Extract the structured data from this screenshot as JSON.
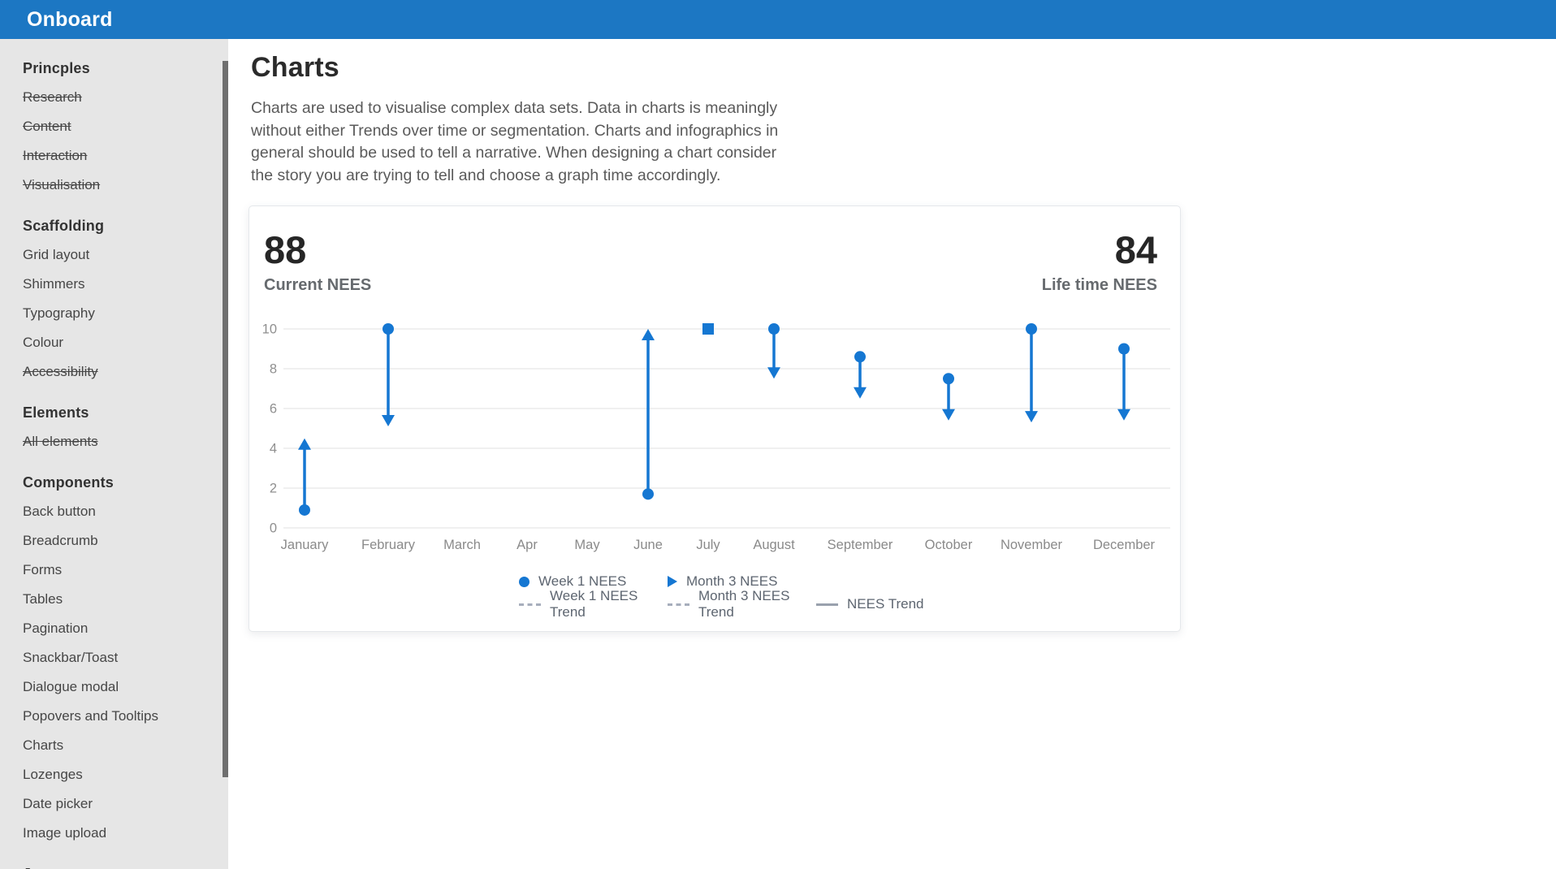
{
  "header": {
    "app_title": "Onboard"
  },
  "sidebar": {
    "sections": [
      {
        "title": "Princples",
        "items": [
          {
            "label": "Research",
            "struck": true
          },
          {
            "label": "Content",
            "struck": true
          },
          {
            "label": "Interaction",
            "struck": true
          },
          {
            "label": "Visualisation",
            "struck": true
          }
        ]
      },
      {
        "title": "Scaffolding",
        "items": [
          {
            "label": "Grid layout",
            "struck": false
          },
          {
            "label": "Shimmers",
            "struck": false
          },
          {
            "label": "Typography",
            "struck": false
          },
          {
            "label": "Colour",
            "struck": false
          },
          {
            "label": "Accessibility",
            "struck": true
          }
        ]
      },
      {
        "title": "Elements",
        "items": [
          {
            "label": "All elements",
            "struck": true
          }
        ]
      },
      {
        "title": "Components",
        "items": [
          {
            "label": "Back button",
            "struck": false
          },
          {
            "label": "Breadcrumb",
            "struck": false
          },
          {
            "label": "Forms",
            "struck": false
          },
          {
            "label": "Tables",
            "struck": false
          },
          {
            "label": "Pagination",
            "struck": false
          },
          {
            "label": "Snackbar/Toast",
            "struck": false
          },
          {
            "label": "Dialogue modal",
            "struck": false
          },
          {
            "label": "Popovers and Tooltips",
            "struck": false
          },
          {
            "label": "Charts",
            "struck": false
          },
          {
            "label": "Lozenges",
            "struck": false
          },
          {
            "label": "Date picker",
            "struck": false
          },
          {
            "label": "Image upload",
            "struck": false
          }
        ]
      },
      {
        "title": "Journeys",
        "items": []
      }
    ]
  },
  "main": {
    "page_title": "Charts",
    "description_lines": [
      "Charts are used to visualise complex data sets. Data in charts is meaningly",
      "without either Trends over time or segmentation. Charts and infographics in",
      "general should be used to tell a narrative. When designing a chart consider",
      "the story you are trying to tell and choose a graph time accordingly."
    ]
  },
  "chart_data": {
    "type": "scatter",
    "subtype": "arrow-change-plot",
    "title": "",
    "kpis": [
      {
        "value": "88",
        "label": "Current NEES"
      },
      {
        "value": "84",
        "label": "Life time NEES"
      }
    ],
    "categories": [
      "January",
      "February",
      "March",
      "Apr",
      "May",
      "June",
      "July",
      "August",
      "September",
      "October",
      "November",
      "December"
    ],
    "series": [
      {
        "name": "Week 1 NEES",
        "marker": "circle",
        "values": [
          0.9,
          10,
          null,
          null,
          null,
          1.7,
          10,
          10,
          8.6,
          7.5,
          10,
          9
        ]
      },
      {
        "name": "Month 3 NEES",
        "marker": "arrowhead",
        "values": [
          4.5,
          5.1,
          null,
          null,
          null,
          10,
          10,
          7.5,
          6.5,
          5.4,
          5.3,
          5.4
        ]
      }
    ],
    "special_markers": [
      {
        "category": "July",
        "marker": "square",
        "value": 10
      }
    ],
    "ylim": [
      0,
      10
    ],
    "yticks": [
      0,
      2,
      4,
      6,
      8,
      10
    ],
    "grid": true,
    "legend": {
      "position": "bottom",
      "rows": [
        [
          {
            "label": "Week 1 NEES",
            "marker": "circle"
          },
          {
            "label": "Month 3 NEES",
            "marker": "triangle"
          }
        ],
        [
          {
            "label": "Week 1 NEES Trend",
            "marker": "dashed"
          },
          {
            "label": "Month 3 NEES Trend",
            "marker": "dashed"
          },
          {
            "label": "NEES Trend",
            "marker": "solid"
          }
        ]
      ]
    },
    "colors": {
      "series_blue": "#1577d2",
      "gridline": "#e1e1e1",
      "axis_text": "#8f8f8f"
    }
  },
  "colors": {
    "header_blue": "#1c77c3",
    "sidebar_gray": "#e6e6e6"
  }
}
